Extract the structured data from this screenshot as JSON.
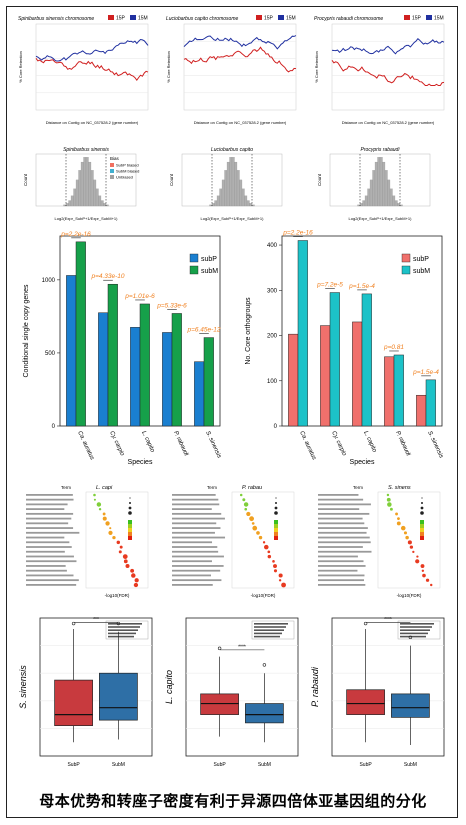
{
  "caption": "母本优势和转座子密度有利于异源四倍体亚基因组的分化",
  "line_panels": [
    {
      "title": "Spinibarbus sinensis chromosome",
      "xlabel": "Distance on Contig on NC_037528.2 (gene number)",
      "ylabel": "% Core Retention"
    },
    {
      "title": "Luciobarbus capito chromosome",
      "xlabel": "Distance on Contig on NC_037528.2 (gene number)",
      "ylabel": "% Core Retention"
    },
    {
      "title": "Procypris rabaudi chromosome",
      "xlabel": "Distance on Contig on NC_037528.2 (gene number)",
      "ylabel": "% Core Retention"
    }
  ],
  "line_legend": [
    "15P",
    "15M"
  ],
  "hist_panels": [
    {
      "title": "Spinibarbus sinensis",
      "xlabel": "Log2(Expr_SubP+1/Expr_SubM+1)",
      "ylabel": "Count"
    },
    {
      "title": "Luciobarbus capito",
      "xlabel": "Log2(Expr_SubP+1/Expr_SubM+1)",
      "ylabel": "Count"
    },
    {
      "title": "Procypris rabaudi",
      "xlabel": "Log2(Expr_SubP+1/Expr_SubM+1)",
      "ylabel": "Count"
    }
  ],
  "hist_legend": {
    "title": "Bias",
    "items": [
      "SubP biased",
      "SubM biased",
      "Unbiased"
    ]
  },
  "bar_left": {
    "chart_data": {
      "type": "bar",
      "ylabel": "Conditional single copy genes",
      "xlabel": "Species",
      "categories": [
        "Ca. auratus",
        "Cy. carpio",
        "L. capito",
        "P. rabaudi",
        "S. sinensis"
      ],
      "series": [
        {
          "name": "subP",
          "values": [
            1030,
            775,
            675,
            640,
            440
          ]
        },
        {
          "name": "subM",
          "values": [
            1260,
            970,
            835,
            770,
            605
          ]
        }
      ],
      "pvalues": [
        "p=2.2e-16",
        "p=4.33e-10",
        "p=1.01e-6",
        "p=5.33e-6",
        "p=6.45e-12"
      ],
      "ylim": [
        0,
        1300
      ],
      "yticks": [
        0,
        500,
        1000
      ]
    }
  },
  "bar_right": {
    "chart_data": {
      "type": "bar",
      "ylabel": "No. Core orthogroups",
      "xlabel": "Species",
      "categories": [
        "Ca. auratus",
        "Cy. carpio",
        "L. capito",
        "P. rabaudi",
        "S. sinensis"
      ],
      "series": [
        {
          "name": "subP",
          "values": [
            203,
            222,
            230,
            153,
            68
          ]
        },
        {
          "name": "subM",
          "values": [
            410,
            295,
            292,
            157,
            102
          ]
        }
      ],
      "pvalues": [
        "p=2.2e-16",
        "p=7.2e-5",
        "p=1.5e-4",
        "p=0.81",
        "p=1.5e-4"
      ],
      "ylim": [
        0,
        420
      ],
      "yticks": [
        0,
        100,
        200,
        300,
        400
      ]
    }
  },
  "go_panels": [
    {
      "title": "L. capi",
      "xlabel": "-log10(FDR)",
      "header": "Term"
    },
    {
      "title": "P. rabau",
      "xlabel": "-log10(FDR)",
      "header": "Term"
    },
    {
      "title": "S. sinens",
      "xlabel": "-log10(FDR)",
      "header": "Term"
    }
  ],
  "box_panels": [
    {
      "ylabel": "S. sinensis",
      "sig": "***",
      "categories": [
        "SubP",
        "SubM"
      ]
    },
    {
      "ylabel": "L. capito",
      "sig": "****",
      "categories": [
        "SubP",
        "SubM"
      ]
    },
    {
      "ylabel": "P. rabaudi",
      "sig": "****",
      "categories": [
        "SubP",
        "SubM"
      ]
    }
  ],
  "colors": {
    "subP_bar": "#1a7fd0",
    "subM_bar": "#16a04a",
    "subP_bar2": "#f0706c",
    "subM_bar2": "#1cc2c8",
    "box_p": "#c83a3e",
    "box_m": "#2e6fa6",
    "line_p": "#d02020",
    "line_m": "#2030a0",
    "pval": "#f08020"
  }
}
